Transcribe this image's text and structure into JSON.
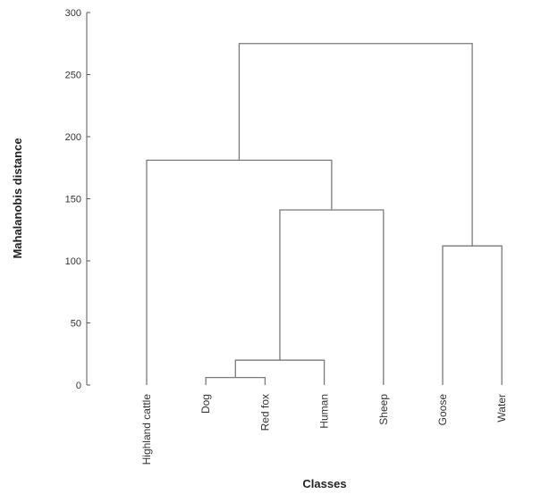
{
  "chart_data": {
    "type": "dendrogram",
    "ylabel": "Mahalanobis distance",
    "xlabel": "Classes",
    "ylim": [
      0,
      300
    ],
    "yticks": [
      0,
      50,
      100,
      150,
      200,
      250,
      300
    ],
    "leaves": [
      "Highland cattle",
      "Dog",
      "Red fox",
      "Human",
      "Sheep",
      "Goose",
      "Water"
    ],
    "merges": [
      {
        "left": "Dog",
        "right": "Red fox",
        "height": 6
      },
      {
        "left": "Dog + Red fox",
        "right": "Human",
        "height": 20
      },
      {
        "left": "Dog + Red fox + Human",
        "right": "Sheep",
        "height": 141
      },
      {
        "left": "Highland cattle",
        "right": "Dog + Red fox + Human + Sheep",
        "height": 181
      },
      {
        "left": "Goose",
        "right": "Water",
        "height": 112
      },
      {
        "left": "Highland cattle + Dog + Red fox + Human + Sheep",
        "right": "Goose + Water",
        "height": 275
      }
    ],
    "links": [
      {
        "left_x": 1,
        "right_x": 2,
        "left_y": 0,
        "right_y": 0,
        "height": 6
      },
      {
        "left_x": 1.5,
        "right_x": 3,
        "left_y": 6,
        "right_y": 0,
        "height": 20
      },
      {
        "left_x": 2.25,
        "right_x": 4,
        "left_y": 20,
        "right_y": 0,
        "height": 141
      },
      {
        "left_x": 0,
        "right_x": 3.125,
        "left_y": 0,
        "right_y": 141,
        "height": 181
      },
      {
        "left_x": 5,
        "right_x": 6,
        "left_y": 0,
        "right_y": 0,
        "height": 112
      },
      {
        "left_x": 1.5625,
        "right_x": 5.5,
        "left_y": 181,
        "right_y": 112,
        "height": 275
      }
    ]
  }
}
